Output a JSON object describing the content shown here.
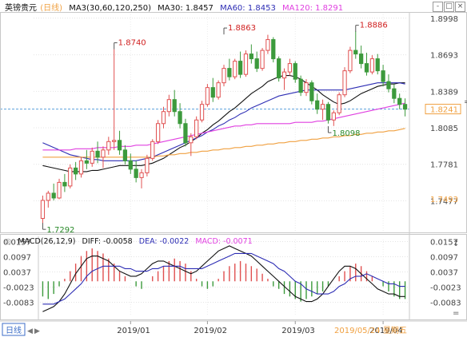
{
  "header": {
    "symbol": "英镑贵元",
    "period_tag": "(日线)",
    "ma_label": "MA3(30,60,120,250)",
    "ma30": "MA30: 1.8457",
    "ma60": "MA60: 1.8453",
    "ma120": "MA120: 1.8291",
    "window_buttons": [
      "-",
      "□",
      "×"
    ]
  },
  "macd_header": {
    "icon": "◎",
    "label": "MACD(26,12,9)",
    "diff": "DIFF: -0.0058",
    "dea": "DEA: -0.0022",
    "macd": "MACD: -0.0071",
    "side_icons": [
      "↕",
      "="
    ]
  },
  "footer": {
    "period_button": "日线",
    "arrows": [
      "◀",
      "▶"
    ],
    "date_label": "2019/05/24 星期五"
  },
  "colors": {
    "up": "#e05050",
    "down": "#3c9a3c",
    "ma30": "#111111",
    "ma60": "#2d2db4",
    "ma120": "#e040e0",
    "ma250": "#f0a040",
    "current_price": "#5aa0dc",
    "accent": "#f0a040"
  },
  "chart_data": [
    {
      "type": "candlestick",
      "title": "英镑贵元 (日线)",
      "x_ticks": [
        "2019/01",
        "2019/02",
        "2019/03",
        "2019/04"
      ],
      "y_ticks": [
        1.8998,
        1.8693,
        1.8389,
        1.8085,
        1.7781,
        1.7477
      ],
      "y_ticks_right": [
        "1.8998",
        "1.8693",
        "1.8389",
        "1.8085",
        "1.7781",
        "1.7477"
      ],
      "ylim": [
        1.722,
        1.903
      ],
      "annotations": [
        {
          "label": "1.7292",
          "date": "2018/12/11",
          "price": 1.7292,
          "kind": "low"
        },
        {
          "label": "1.8740",
          "date": "2019/01/15",
          "price": 1.874,
          "kind": "high"
        },
        {
          "label": "1.8863",
          "date": "2019/03/13",
          "price": 1.8863,
          "kind": "high"
        },
        {
          "label": "1.8098",
          "date": "2019/04/08",
          "price": 1.8098,
          "kind": "low"
        },
        {
          "label": "1.8886",
          "date": "2019/04/24",
          "price": 1.8886,
          "kind": "high"
        }
      ],
      "current_price": {
        "label": "1.8241",
        "value": 1.8241
      },
      "extra_level": {
        "label": "1.7493",
        "value": 1.7493
      },
      "candles_ohlc": [
        [
          1.733,
          1.752,
          1.729,
          1.748
        ],
        [
          1.748,
          1.756,
          1.742,
          1.754
        ],
        [
          1.754,
          1.762,
          1.748,
          1.75
        ],
        [
          1.75,
          1.766,
          1.749,
          1.763
        ],
        [
          1.763,
          1.77,
          1.755,
          1.76
        ],
        [
          1.76,
          1.778,
          1.758,
          1.775
        ],
        [
          1.775,
          1.78,
          1.765,
          1.77
        ],
        [
          1.77,
          1.784,
          1.767,
          1.781
        ],
        [
          1.781,
          1.79,
          1.774,
          1.779
        ],
        [
          1.779,
          1.792,
          1.776,
          1.789
        ],
        [
          1.789,
          1.797,
          1.779,
          1.784
        ],
        [
          1.784,
          1.793,
          1.775,
          1.79
        ],
        [
          1.79,
          1.801,
          1.786,
          1.797
        ],
        [
          1.797,
          1.874,
          1.79,
          1.798
        ],
        [
          1.798,
          1.806,
          1.786,
          1.79
        ],
        [
          1.79,
          1.794,
          1.778,
          1.781
        ],
        [
          1.781,
          1.787,
          1.77,
          1.774
        ],
        [
          1.774,
          1.781,
          1.763,
          1.767
        ],
        [
          1.767,
          1.774,
          1.758,
          1.771
        ],
        [
          1.771,
          1.786,
          1.768,
          1.783
        ],
        [
          1.783,
          1.799,
          1.781,
          1.797
        ],
        [
          1.797,
          1.815,
          1.795,
          1.812
        ],
        [
          1.812,
          1.826,
          1.808,
          1.822
        ],
        [
          1.822,
          1.836,
          1.818,
          1.832
        ],
        [
          1.832,
          1.84,
          1.818,
          1.822
        ],
        [
          1.822,
          1.829,
          1.808,
          1.812
        ],
        [
          1.812,
          1.816,
          1.793,
          1.796
        ],
        [
          1.796,
          1.804,
          1.785,
          1.801
        ],
        [
          1.801,
          1.818,
          1.799,
          1.815
        ],
        [
          1.815,
          1.831,
          1.813,
          1.828
        ],
        [
          1.828,
          1.845,
          1.826,
          1.842
        ],
        [
          1.842,
          1.85,
          1.83,
          1.834
        ],
        [
          1.834,
          1.848,
          1.832,
          1.846
        ],
        [
          1.846,
          1.861,
          1.843,
          1.858
        ],
        [
          1.858,
          1.866,
          1.848,
          1.851
        ],
        [
          1.851,
          1.866,
          1.849,
          1.864
        ],
        [
          1.864,
          1.872,
          1.85,
          1.853
        ],
        [
          1.853,
          1.873,
          1.851,
          1.87
        ],
        [
          1.87,
          1.878,
          1.862,
          1.866
        ],
        [
          1.866,
          1.872,
          1.855,
          1.858
        ],
        [
          1.858,
          1.875,
          1.856,
          1.873
        ],
        [
          1.873,
          1.886,
          1.87,
          1.882
        ],
        [
          1.882,
          1.884,
          1.863,
          1.866
        ],
        [
          1.866,
          1.868,
          1.847,
          1.85
        ],
        [
          1.85,
          1.858,
          1.84,
          1.855
        ],
        [
          1.855,
          1.866,
          1.852,
          1.862
        ],
        [
          1.862,
          1.864,
          1.846,
          1.849
        ],
        [
          1.849,
          1.852,
          1.835,
          1.838
        ],
        [
          1.838,
          1.849,
          1.835,
          1.846
        ],
        [
          1.846,
          1.848,
          1.828,
          1.831
        ],
        [
          1.831,
          1.837,
          1.82,
          1.824
        ],
        [
          1.824,
          1.832,
          1.815,
          1.828
        ],
        [
          1.828,
          1.83,
          1.812,
          1.815
        ],
        [
          1.815,
          1.823,
          1.81,
          1.821
        ],
        [
          1.821,
          1.838,
          1.819,
          1.836
        ],
        [
          1.836,
          1.859,
          1.834,
          1.856
        ],
        [
          1.856,
          1.876,
          1.854,
          1.873
        ],
        [
          1.873,
          1.889,
          1.866,
          1.87
        ],
        [
          1.87,
          1.877,
          1.858,
          1.862
        ],
        [
          1.862,
          1.871,
          1.852,
          1.855
        ],
        [
          1.855,
          1.869,
          1.853,
          1.866
        ],
        [
          1.866,
          1.87,
          1.853,
          1.856
        ],
        [
          1.856,
          1.861,
          1.843,
          1.847
        ],
        [
          1.847,
          1.853,
          1.838,
          1.841
        ],
        [
          1.841,
          1.845,
          1.829,
          1.833
        ],
        [
          1.833,
          1.837,
          1.824,
          1.828
        ],
        [
          1.828,
          1.833,
          1.818,
          1.824
        ]
      ],
      "series": [
        {
          "name": "MA30",
          "values": [
            1.777,
            1.776,
            1.775,
            1.774,
            1.773,
            1.772,
            1.772,
            1.772,
            1.772,
            1.773,
            1.773,
            1.774,
            1.775,
            1.776,
            1.777,
            1.777,
            1.777,
            1.777,
            1.777,
            1.778,
            1.779,
            1.781,
            1.783,
            1.786,
            1.789,
            1.792,
            1.794,
            1.797,
            1.8,
            1.804,
            1.807,
            1.811,
            1.814,
            1.818,
            1.822,
            1.825,
            1.829,
            1.833,
            1.837,
            1.84,
            1.843,
            1.847,
            1.849,
            1.851,
            1.852,
            1.852,
            1.851,
            1.849,
            1.846,
            1.843,
            1.84,
            1.836,
            1.833,
            1.83,
            1.828,
            1.829,
            1.831,
            1.834,
            1.837,
            1.839,
            1.841,
            1.843,
            1.844,
            1.845,
            1.845,
            1.846,
            1.846
          ]
        },
        {
          "name": "MA60",
          "values": [
            1.796,
            1.794,
            1.792,
            1.79,
            1.788,
            1.786,
            1.785,
            1.784,
            1.783,
            1.782,
            1.782,
            1.781,
            1.781,
            1.781,
            1.781,
            1.781,
            1.781,
            1.781,
            1.782,
            1.783,
            1.784,
            1.786,
            1.788,
            1.79,
            1.792,
            1.794,
            1.796,
            1.798,
            1.8,
            1.802,
            1.805,
            1.807,
            1.81,
            1.812,
            1.815,
            1.817,
            1.82,
            1.822,
            1.825,
            1.827,
            1.829,
            1.831,
            1.833,
            1.835,
            1.836,
            1.837,
            1.838,
            1.839,
            1.84,
            1.84,
            1.84,
            1.84,
            1.84,
            1.84,
            1.84,
            1.84,
            1.841,
            1.842,
            1.843,
            1.844,
            1.845,
            1.846,
            1.846,
            1.846,
            1.846,
            1.846,
            1.845
          ]
        },
        {
          "name": "MA120",
          "values": [
            1.79,
            1.79,
            1.79,
            1.79,
            1.79,
            1.79,
            1.791,
            1.791,
            1.791,
            1.791,
            1.792,
            1.792,
            1.792,
            1.792,
            1.793,
            1.793,
            1.793,
            1.794,
            1.794,
            1.794,
            1.795,
            1.796,
            1.797,
            1.798,
            1.799,
            1.8,
            1.801,
            1.802,
            1.803,
            1.804,
            1.805,
            1.806,
            1.807,
            1.808,
            1.809,
            1.81,
            1.81,
            1.811,
            1.811,
            1.812,
            1.812,
            1.812,
            1.812,
            1.812,
            1.812,
            1.812,
            1.813,
            1.813,
            1.813,
            1.813,
            1.814,
            1.814,
            1.815,
            1.816,
            1.817,
            1.818,
            1.819,
            1.82,
            1.821,
            1.822,
            1.823,
            1.824,
            1.825,
            1.826,
            1.827,
            1.828,
            1.829
          ]
        },
        {
          "name": "MA250",
          "values": [
            1.784,
            1.784,
            1.784,
            1.784,
            1.784,
            1.784,
            1.784,
            1.784,
            1.784,
            1.784,
            1.784,
            1.784,
            1.784,
            1.784,
            1.784,
            1.784,
            1.784,
            1.784,
            1.784,
            1.784,
            1.784,
            1.785,
            1.785,
            1.786,
            1.786,
            1.787,
            1.787,
            1.788,
            1.788,
            1.789,
            1.789,
            1.79,
            1.79,
            1.791,
            1.791,
            1.792,
            1.792,
            1.793,
            1.793,
            1.794,
            1.794,
            1.795,
            1.795,
            1.796,
            1.796,
            1.797,
            1.797,
            1.798,
            1.798,
            1.799,
            1.799,
            1.8,
            1.8,
            1.801,
            1.801,
            1.802,
            1.802,
            1.803,
            1.803,
            1.804,
            1.804,
            1.805,
            1.805,
            1.806,
            1.806,
            1.807,
            1.808
          ]
        }
      ]
    },
    {
      "type": "macd",
      "title": "MACD(26,12,9)",
      "y_ticks": [
        0.0157,
        0.0097,
        0.0037,
        -0.0023,
        -0.0083
      ],
      "y_ticks_left": [
        "0.0157",
        "0.0097",
        "0.0037",
        "-0.0023",
        "-0.0083"
      ],
      "y_ticks_right": [
        "0.0157",
        "0.0097",
        "0.0037",
        "-0.0023",
        "-0.0083"
      ],
      "ylim": [
        -0.0135,
        0.0165
      ],
      "histogram": [
        -0.006,
        -0.007,
        -0.005,
        -0.002,
        0.001,
        0.004,
        0.007,
        0.01,
        0.012,
        0.013,
        0.012,
        0.011,
        0.009,
        0.007,
        0.004,
        0.002,
        0.0,
        -0.002,
        -0.003,
        0.0,
        0.002,
        0.004,
        0.006,
        0.008,
        0.009,
        0.008,
        0.007,
        0.004,
        0.001,
        -0.002,
        -0.003,
        -0.002,
        0.001,
        0.004,
        0.006,
        0.007,
        0.008,
        0.007,
        0.006,
        0.005,
        0.003,
        0.001,
        -0.002,
        -0.003,
        -0.005,
        -0.006,
        -0.007,
        -0.008,
        -0.007,
        -0.006,
        -0.005,
        -0.004,
        -0.002,
        0.0,
        0.002,
        0.004,
        0.006,
        0.007,
        0.006,
        0.004,
        0.002,
        0.0,
        -0.002,
        -0.004,
        -0.006,
        -0.007,
        -0.007
      ],
      "series": [
        {
          "name": "DIFF",
          "values": [
            -0.012,
            -0.011,
            -0.01,
            -0.008,
            -0.005,
            -0.001,
            0.003,
            0.006,
            0.009,
            0.01,
            0.01,
            0.009,
            0.008,
            0.006,
            0.004,
            0.003,
            0.002,
            0.002,
            0.003,
            0.005,
            0.007,
            0.008,
            0.008,
            0.007,
            0.006,
            0.005,
            0.004,
            0.003,
            0.004,
            0.006,
            0.008,
            0.01,
            0.012,
            0.013,
            0.014,
            0.013,
            0.012,
            0.011,
            0.01,
            0.008,
            0.006,
            0.004,
            0.002,
            0.0,
            -0.002,
            -0.004,
            -0.006,
            -0.007,
            -0.008,
            -0.008,
            -0.007,
            -0.005,
            -0.002,
            0.001,
            0.004,
            0.006,
            0.006,
            0.005,
            0.003,
            0.001,
            -0.001,
            -0.003,
            -0.004,
            -0.005,
            -0.005,
            -0.006,
            -0.006
          ]
        },
        {
          "name": "DEA",
          "values": [
            -0.009,
            -0.009,
            -0.009,
            -0.008,
            -0.007,
            -0.005,
            -0.003,
            -0.001,
            0.002,
            0.004,
            0.005,
            0.006,
            0.006,
            0.006,
            0.006,
            0.005,
            0.005,
            0.004,
            0.004,
            0.004,
            0.005,
            0.005,
            0.006,
            0.006,
            0.006,
            0.006,
            0.005,
            0.005,
            0.005,
            0.005,
            0.006,
            0.007,
            0.008,
            0.009,
            0.01,
            0.011,
            0.011,
            0.011,
            0.011,
            0.01,
            0.009,
            0.008,
            0.007,
            0.005,
            0.004,
            0.002,
            0.0,
            -0.001,
            -0.003,
            -0.004,
            -0.005,
            -0.005,
            -0.005,
            -0.004,
            -0.002,
            -0.001,
            0.001,
            0.002,
            0.002,
            0.003,
            0.002,
            0.001,
            0.0,
            -0.001,
            -0.001,
            -0.002,
            -0.002
          ]
        }
      ],
      "x_ticks": [
        "2019/01",
        "2019/02",
        "2019/03",
        "2019/04"
      ]
    }
  ]
}
